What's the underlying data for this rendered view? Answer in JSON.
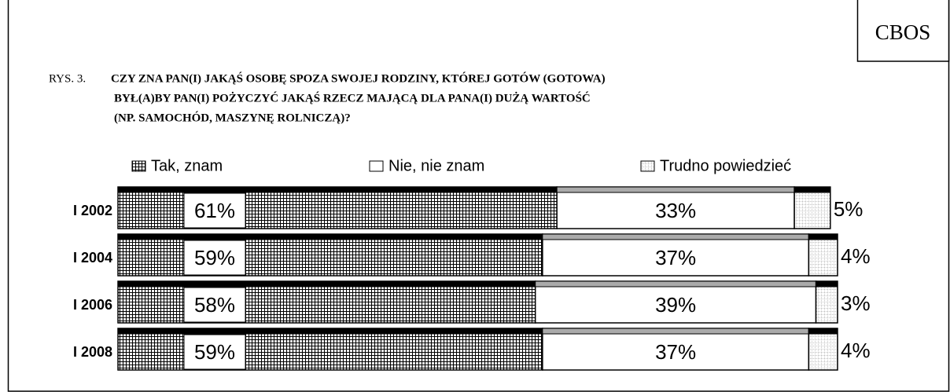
{
  "source": "CBOS",
  "chart_data": {
    "type": "stacked_bar_horizontal",
    "figure_label": "RYS. 3.",
    "title": [
      "CZY ZNA PAN(I) JAKĄŚ OSOBĘ SPOZA SWOJEJ RODZINY, KTÓREJ GOTÓW (GOTOWA)",
      "BYŁ(A)BY PAN(I) POŻYCZYĆ JAKĄŚ RZECZ MAJĄCĄ DLA PANA(I) DUŻĄ WARTOŚĆ",
      "(NP. SAMOCHÓD, MASZYNĘ ROLNICZĄ)?"
    ],
    "categories": [
      "I 2002",
      "I 2004",
      "I 2006",
      "I 2008"
    ],
    "xlim": [
      0,
      100
    ],
    "legend": "top",
    "series": [
      {
        "name": "Tak, znam",
        "color": "#000000",
        "pattern": "grid",
        "values": [
          61,
          59,
          58,
          59
        ],
        "value_labels": [
          "61%",
          "59%",
          "58%",
          "59%"
        ]
      },
      {
        "name": "Nie, nie znam",
        "color": "#ffffff",
        "pattern": "none",
        "values": [
          33,
          37,
          39,
          37
        ],
        "value_labels": [
          "33%",
          "37%",
          "39%",
          "37%"
        ]
      },
      {
        "name": "Trudno powiedzieć",
        "color": "#888888",
        "pattern": "dots",
        "values": [
          5,
          4,
          3,
          4
        ],
        "value_labels": [
          "5%",
          "4%",
          "3%",
          "4%"
        ]
      }
    ]
  }
}
